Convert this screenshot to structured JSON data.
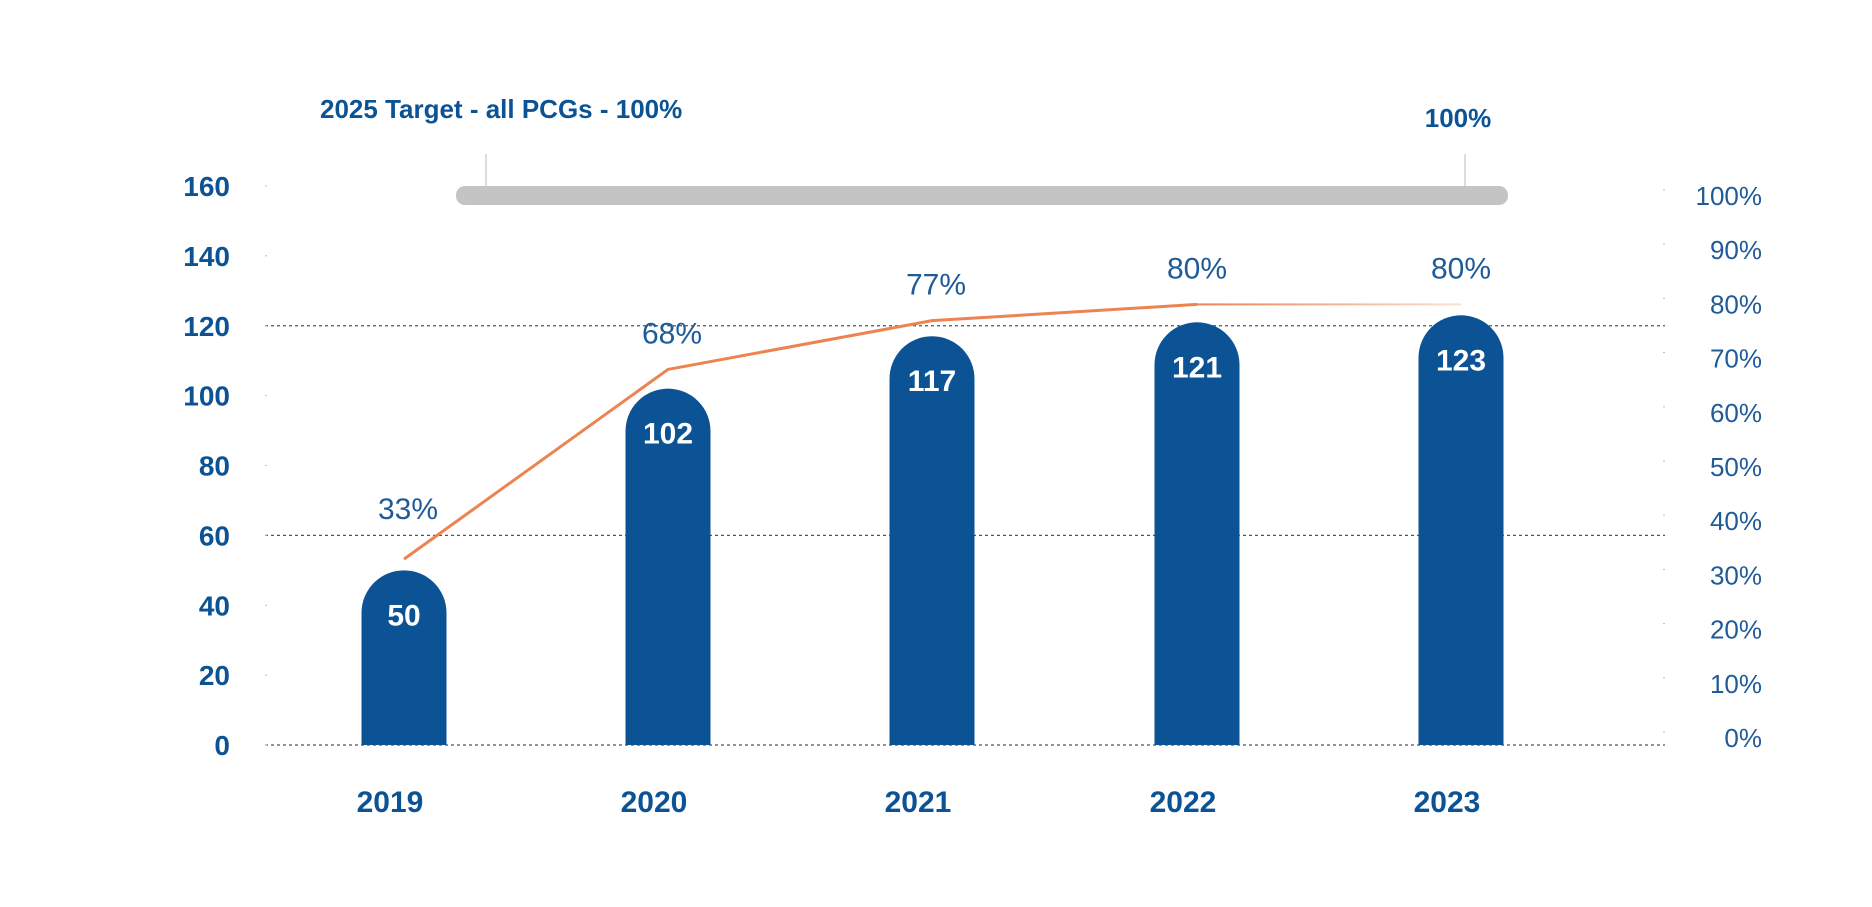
{
  "chart_data": {
    "type": "bar",
    "categories": [
      "2019",
      "2020",
      "2021",
      "2022",
      "2023"
    ],
    "series": [
      {
        "values": [
          50,
          102,
          117,
          121,
          123
        ],
        "type": "bar",
        "axis": "left"
      },
      {
        "values": [
          33,
          68,
          77,
          80,
          80
        ],
        "type": "line",
        "axis": "right",
        "value_labels": [
          "33%",
          "68%",
          "77%",
          "80%",
          "80%"
        ]
      }
    ],
    "bar_labels": [
      "50",
      "102",
      "117",
      "121",
      "123"
    ],
    "ylim": [
      0,
      160
    ],
    "y_ticks": [
      "0",
      "20",
      "40",
      "60",
      "80",
      "100",
      "120",
      "140",
      "160"
    ],
    "y2lim": [
      0,
      100
    ],
    "y2_ticks": [
      "0%",
      "10%",
      "20%",
      "30%",
      "40%",
      "50%",
      "60%",
      "70%",
      "80%",
      "90%",
      "100%"
    ],
    "target": {
      "label": "2025 Target - all PCGs - 100%",
      "value_label": "100%",
      "value": 100
    },
    "gridlines": [
      0,
      60,
      120
    ],
    "grid": "dashed at 0, 60, 120",
    "colors": {
      "bar": "#0b5394",
      "line": "#ec8350",
      "target_bar": "#c4c4c4",
      "text": "#0b5394",
      "right_axis_text": "#1f5b99",
      "grid": "#555555"
    }
  }
}
